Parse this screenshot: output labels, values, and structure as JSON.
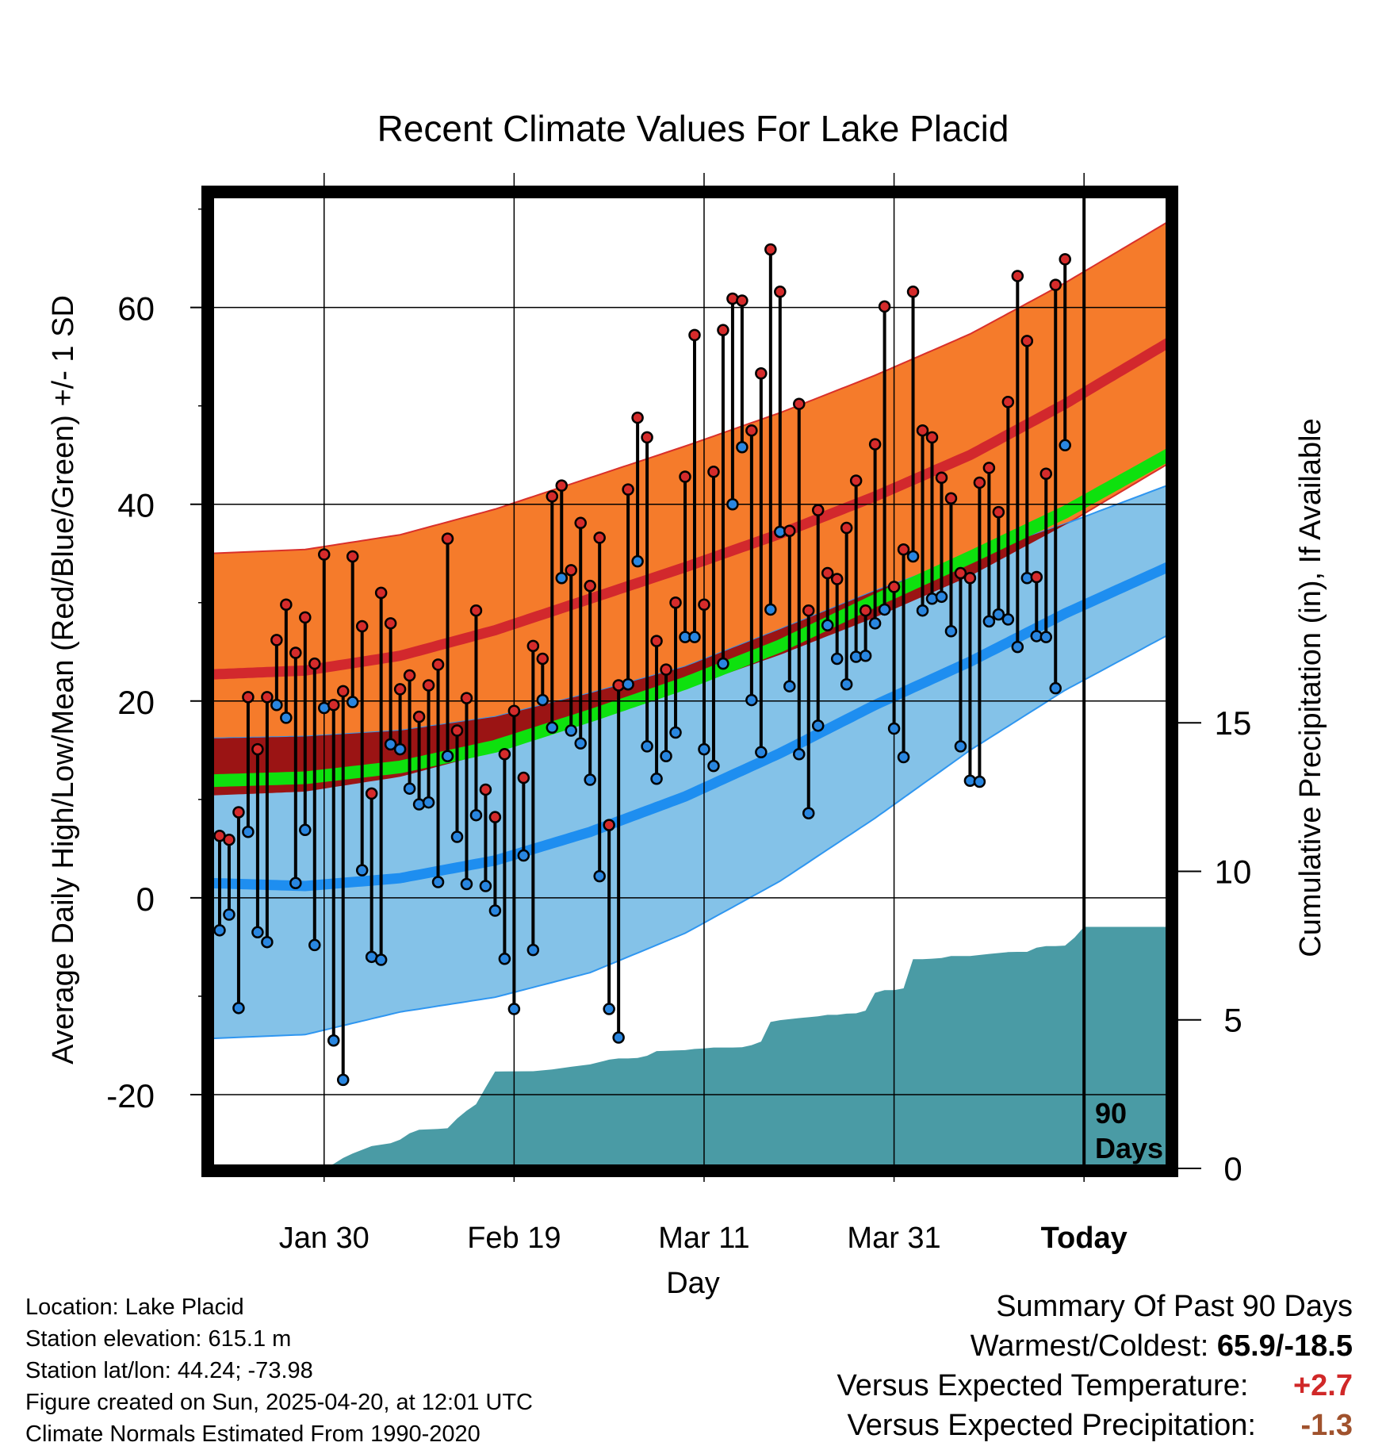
{
  "title": "Recent Climate Values For Lake Placid",
  "chart_data": {
    "type": "line",
    "title": "Recent Climate Values For Lake Placid",
    "xlabel": "Day",
    "ylabel": "Average Daily High/Low/Mean (Red/Blue/Green) +/- 1 SD",
    "y2label": "Cumulative Precipitation (in), If Available",
    "xticks": [
      {
        "day": 12,
        "label": "Jan 30"
      },
      {
        "day": 32,
        "label": "Feb 19"
      },
      {
        "day": 52,
        "label": "Mar 11"
      },
      {
        "day": 72,
        "label": "Mar 31"
      },
      {
        "day": 92,
        "label": "Today"
      }
    ],
    "xlim": [
      0,
      101
    ],
    "ylim": [
      -27.5,
      71.5
    ],
    "yticks": [
      -20,
      0,
      20,
      40,
      60
    ],
    "y2lim": [
      0,
      17
    ],
    "y2ticks": [
      0,
      5,
      10,
      15
    ],
    "today_marker": {
      "day": 92,
      "label_line1": "90",
      "label_line2": "Days"
    },
    "normals": {
      "days": [
        0,
        10,
        20,
        30,
        40,
        50,
        60,
        70,
        80,
        90,
        101
      ],
      "high_mean": [
        22.7,
        23.1,
        24.6,
        27.2,
        30.4,
        33.6,
        37.0,
        40.8,
        45.0,
        50.2,
        56.5
      ],
      "high_sd": 12.3,
      "low_mean": [
        1.5,
        1.2,
        2.0,
        3.8,
        6.7,
        10.3,
        14.7,
        19.6,
        24.0,
        28.9,
        33.7
      ],
      "low_sd_upper": [
        16.2,
        16.4,
        17.0,
        18.4,
        20.8,
        23.5,
        27.3,
        31.2,
        34.7,
        38.0,
        42.0
      ],
      "low_sd_lower": [
        -14.3,
        -13.9,
        -11.6,
        -10.1,
        -7.6,
        -3.6,
        1.7,
        8.1,
        15.0,
        21.1,
        26.8
      ],
      "avg_mean": [
        11.9,
        12.2,
        13.3,
        15.4,
        18.5,
        21.8,
        25.6,
        30.2,
        34.6,
        39.2,
        45.1
      ]
    },
    "series": [
      {
        "name": "High",
        "values": [
          6.3,
          5.9,
          8.7,
          20.4,
          15.1,
          20.4,
          26.2,
          29.8,
          24.9,
          28.5,
          23.8,
          34.9,
          19.6,
          21.0,
          34.7,
          27.6,
          10.6,
          31.0,
          27.9,
          21.2,
          22.6,
          18.4,
          21.6,
          23.7,
          36.5,
          17.0,
          20.3,
          29.2,
          11.0,
          8.2,
          14.6,
          19.0,
          12.2,
          25.6,
          24.3,
          40.8,
          41.9,
          33.3,
          38.1,
          31.7,
          36.6,
          7.4,
          21.6,
          41.5,
          48.8,
          46.8,
          26.1,
          23.2,
          30.0,
          42.8,
          57.2,
          29.8,
          43.3,
          57.7,
          60.9,
          60.7,
          47.5,
          53.3,
          65.9,
          61.6,
          37.3,
          50.2,
          29.2,
          39.4,
          33.0,
          32.4,
          37.6,
          42.4,
          29.2,
          46.1,
          60.1,
          31.6,
          35.4,
          61.6,
          47.5,
          46.8,
          42.7,
          40.6,
          33.0,
          32.5,
          42.2,
          43.7,
          39.2,
          50.4,
          63.2,
          56.6,
          32.6,
          43.1,
          62.3,
          64.9
        ],
        "low": [
          -3.3,
          -1.7,
          -11.2,
          6.7,
          -3.5,
          -4.5,
          19.6,
          18.3,
          1.5,
          6.9,
          -4.8,
          19.3,
          -14.5,
          -18.5,
          19.9,
          2.8,
          -6.0,
          -6.3,
          15.6,
          15.1,
          11.1,
          9.5,
          9.7,
          1.6,
          14.4,
          6.2,
          1.4,
          8.4,
          1.2,
          -1.3,
          -6.2,
          -11.3,
          4.3,
          -5.3,
          20.1,
          17.3,
          32.5,
          17.0,
          15.7,
          12.0,
          2.2,
          -11.3,
          -14.2,
          21.7,
          34.2,
          15.4,
          12.1,
          14.4,
          16.8,
          26.5,
          26.5,
          15.1,
          13.4,
          23.8,
          40.0,
          45.8,
          20.1,
          14.8,
          29.3,
          37.2,
          21.5,
          14.6,
          8.6,
          17.5,
          27.7,
          24.3,
          21.7,
          24.5,
          24.6,
          27.9,
          29.3,
          17.2,
          14.3,
          34.7,
          29.2,
          30.4,
          30.6,
          27.1,
          15.4,
          11.9,
          11.8,
          28.1,
          28.8,
          28.3,
          25.5,
          32.5,
          26.6,
          26.5,
          21.3,
          46.0
        ]
      }
    ],
    "precipitation": {
      "days": [
        0,
        10,
        11,
        12,
        13,
        14,
        15,
        17,
        19,
        20,
        21,
        22,
        24,
        25,
        26,
        27,
        28,
        29,
        30,
        34,
        36,
        38,
        40,
        42,
        43,
        44,
        45,
        46,
        47,
        48,
        49,
        50,
        51,
        52,
        53,
        54,
        55,
        56,
        57,
        58,
        59,
        60,
        62,
        64,
        65,
        66,
        67,
        68,
        69,
        70,
        71,
        72,
        73,
        74,
        75,
        76,
        77,
        78,
        80,
        82,
        84,
        85,
        86,
        87,
        88,
        89,
        90,
        91,
        92,
        95,
        101
      ],
      "values": [
        0,
        0,
        0,
        0.04,
        0.15,
        0.35,
        0.5,
        0.75,
        0.85,
        0.97,
        1.18,
        1.3,
        1.33,
        1.35,
        1.68,
        1.94,
        2.16,
        2.72,
        3.26,
        3.27,
        3.33,
        3.42,
        3.5,
        3.66,
        3.7,
        3.7,
        3.72,
        3.79,
        3.95,
        3.96,
        3.97,
        3.98,
        4.02,
        4.04,
        4.07,
        4.07,
        4.07,
        4.08,
        4.15,
        4.27,
        4.93,
        4.99,
        5.06,
        5.12,
        5.17,
        5.17,
        5.21,
        5.22,
        5.31,
        5.91,
        6.0,
        6.0,
        6.06,
        7.04,
        7.04,
        7.06,
        7.08,
        7.15,
        7.15,
        7.22,
        7.28,
        7.29,
        7.29,
        7.43,
        7.48,
        7.48,
        7.5,
        7.77,
        8.13,
        8.13,
        8.13
      ]
    }
  },
  "info": {
    "location": "Location: Lake Placid",
    "elevation": "Station elevation: 615.1 m",
    "latlon": "Station lat/lon: 44.24; -73.98",
    "created": "Figure created on Sun, 2025-04-20, at 12:01 UTC",
    "normals": "Climate Normals Estimated From 1990-2020"
  },
  "summary": {
    "heading": "Summary Of Past 90 Days",
    "warmcold_label": "Warmest/Coldest:",
    "warmcold_value": "65.9/-18.5",
    "temp_label": "Versus Expected Temperature:",
    "temp_value": "+2.7",
    "precip_label": "Versus Expected Precipitation:",
    "precip_value": "-1.3"
  },
  "colors": {
    "high_band": "#f57b2b",
    "high_line": "#d2282d",
    "overlap_band": "#9b1414",
    "low_band": "#84c2e8",
    "low_line": "#1e8ef0",
    "mean_line": "#0ee10e",
    "precip": "#4a9ba5",
    "high_dot": "#d52b2b",
    "low_dot": "#2986e0",
    "temp_value": "#d02828",
    "precip_value": "#a0522d"
  }
}
